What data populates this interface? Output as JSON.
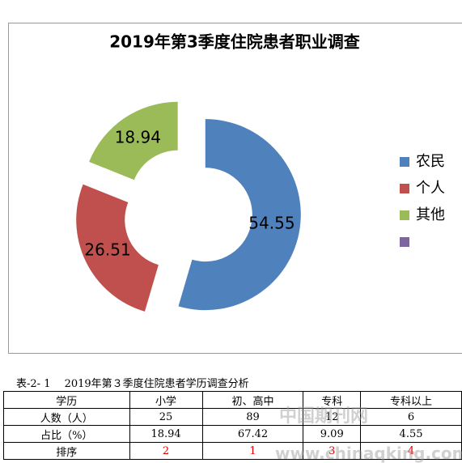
{
  "chart_data": {
    "type": "donut",
    "title": "2019年第3季度住院患者职业调查",
    "categories": [
      "农民",
      "个人",
      "其他",
      null
    ],
    "values": [
      54.55,
      26.51,
      18.94,
      0
    ],
    "colors": [
      "#4f81bd",
      "#c0504d",
      "#9bbb59",
      "#8064a2"
    ],
    "legend": "right"
  },
  "table": {
    "caption": "表-2- 1　 2019年第３季度住院患者学历调查分析",
    "rows": [
      [
        "学历",
        "小学",
        "初、高中",
        "专科",
        "专科以上"
      ],
      [
        "人数（人）",
        25,
        89,
        12,
        6
      ],
      [
        "占比（%）",
        18.94,
        67.42,
        9.09,
        4.55
      ],
      [
        "排序",
        2,
        1,
        3,
        4
      ]
    ]
  },
  "watermark": {
    "line1": "中国期刊网",
    "line2": "www.chinaqking.com"
  }
}
